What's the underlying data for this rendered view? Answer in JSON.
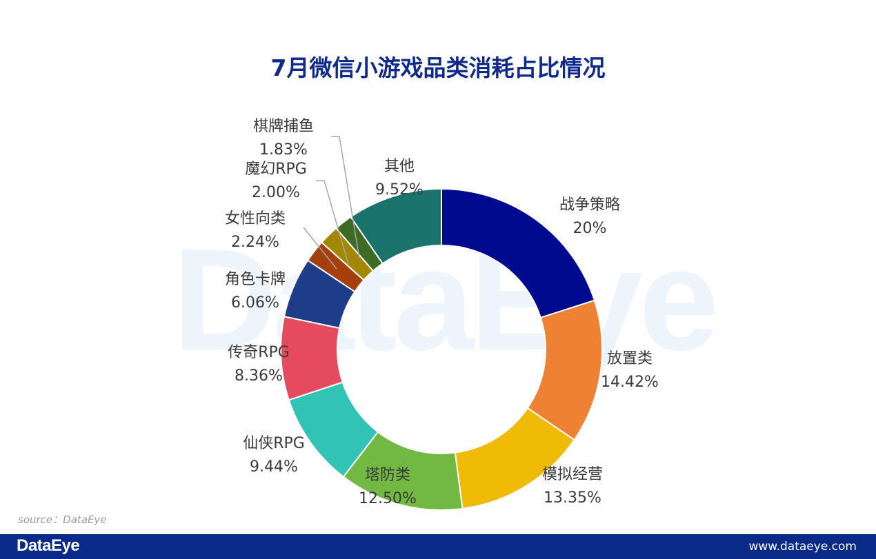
{
  "chart_data": {
    "type": "pie",
    "subtype": "donut",
    "title": "7月微信小游戏品类消耗占比情况",
    "slices": [
      {
        "label": "战争策略",
        "value": 20,
        "display": "20%",
        "color": "#000a8f"
      },
      {
        "label": "放置类",
        "value": 14.42,
        "display": "14.42%",
        "color": "#ee8133"
      },
      {
        "label": "模拟经营",
        "value": 13.35,
        "display": "13.35%",
        "color": "#f0bb06"
      },
      {
        "label": "塔防类",
        "value": 12.5,
        "display": "12.50%",
        "color": "#72b943"
      },
      {
        "label": "仙侠RPG",
        "value": 9.44,
        "display": "9.44%",
        "color": "#30c3b6"
      },
      {
        "label": "传奇RPG",
        "value": 8.36,
        "display": "8.36%",
        "color": "#e54a5e"
      },
      {
        "label": "角色卡牌",
        "value": 6.06,
        "display": "6.06%",
        "color": "#1f3c88"
      },
      {
        "label": "女性向类",
        "value": 2.24,
        "display": "2.24%",
        "color": "#a5400e"
      },
      {
        "label": "魔幻RPG",
        "value": 2.0,
        "display": "2.00%",
        "color": "#a38700"
      },
      {
        "label": "棋牌捕鱼",
        "value": 1.83,
        "display": "1.83%",
        "color": "#3c6b25"
      },
      {
        "label": "其他",
        "value": 9.52,
        "display": "9.52%",
        "color": "#1a736d"
      }
    ]
  },
  "watermark": "DataEye",
  "source": "source：DataEye",
  "footer": {
    "brand": "DataEye",
    "url": "www.dataeye.com"
  }
}
